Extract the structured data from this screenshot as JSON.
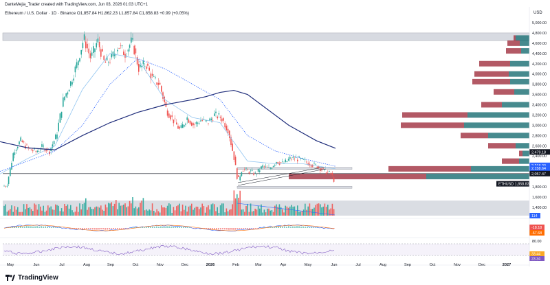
{
  "header": {
    "credit": "DanteMejia_Trader created with TradingView.com, Jun 03, 2026 01:03 UTC+1",
    "symbol_line": "Ethereum / U.S. Dollar · 1D · Binance  O1,857.84  H1,862.23  L1,857.84  C1,858.83  +0.99 (+0.05%)"
  },
  "brand": {
    "name": "TradingView",
    "logo_icon": "tradingview-logo-icon"
  },
  "price_axis": {
    "currency": "USD",
    "ticks": [
      "5,000.00",
      "4,800.00",
      "4,600.00",
      "4,400.00",
      "4,200.00",
      "4,000.00",
      "3,800.00",
      "3,600.00",
      "3,400.00",
      "3,200.00",
      "3,000.00",
      "2,800.00",
      "2,600.00",
      "2,400.00",
      "2,200.00",
      "1,800.00",
      "1,600.00",
      "1,400.00"
    ],
    "tick_values": [
      5000,
      4800,
      4600,
      4400,
      4200,
      4000,
      3800,
      3600,
      3400,
      3200,
      3000,
      2800,
      2600,
      2400,
      2200,
      1800,
      1600,
      1400
    ],
    "badges": [
      {
        "text": "2,479.18",
        "value": 2479.18,
        "color": "#131722"
      },
      {
        "text": "2,218.00",
        "value": 2218,
        "color": "#2962ff"
      },
      {
        "text": "2,158.64",
        "value": 2158.64,
        "color": "#2962ff"
      },
      {
        "text": "2,057.47",
        "value": 2057.47,
        "color": "#131722"
      },
      {
        "text": "ETHUSD",
        "value": 1858.83,
        "color": "#131722",
        "wide": true,
        "label": "1,858.83"
      }
    ],
    "volume_badge": "114",
    "macd_badges": [
      "-18.18",
      "-67.68"
    ],
    "rsi_ticks": [
      "80.00"
    ],
    "rsi_badges": [
      "33.44",
      "23.34"
    ]
  },
  "time_axis": {
    "labels": [
      "May",
      "Jun",
      "Jul",
      "Aug",
      "Sep",
      "Oct",
      "Nov",
      "Dec",
      "2026",
      "Feb",
      "Mar",
      "Apr",
      "May",
      "Jun",
      "Jul",
      "Aug",
      "Sep",
      "Oct",
      "Nov",
      "Dec",
      "2027"
    ]
  },
  "chart_data": {
    "type": "candlestick",
    "symbol": "ETHUSD",
    "interval": "1D",
    "exchange": "Binance",
    "last_price": 1858.83,
    "ylim": [
      1400,
      5000
    ],
    "price_path": [
      [
        0,
        1800
      ],
      [
        10,
        1830
      ],
      [
        20,
        2500
      ],
      [
        30,
        2700
      ],
      [
        40,
        2550
      ],
      [
        52,
        2480
      ],
      [
        62,
        2580
      ],
      [
        72,
        2500
      ],
      [
        82,
        2800
      ],
      [
        92,
        3500
      ],
      [
        102,
        3800
      ],
      [
        112,
        4200
      ],
      [
        122,
        4700
      ],
      [
        132,
        4300
      ],
      [
        142,
        4650
      ],
      [
        152,
        4200
      ],
      [
        162,
        4300
      ],
      [
        172,
        4550
      ],
      [
        182,
        4400
      ],
      [
        192,
        4650
      ],
      [
        202,
        4100
      ],
      [
        212,
        4200
      ],
      [
        222,
        3900
      ],
      [
        232,
        3800
      ],
      [
        242,
        3300
      ],
      [
        252,
        3100
      ],
      [
        262,
        2900
      ],
      [
        272,
        3150
      ],
      [
        282,
        3000
      ],
      [
        292,
        3100
      ],
      [
        302,
        3050
      ],
      [
        312,
        3200
      ],
      [
        322,
        3150
      ],
      [
        332,
        2900
      ],
      [
        340,
        2400
      ],
      [
        346,
        1900
      ],
      [
        352,
        2150
      ],
      [
        362,
        2100
      ],
      [
        372,
        2050
      ],
      [
        382,
        2200
      ],
      [
        392,
        2150
      ],
      [
        402,
        2300
      ],
      [
        412,
        2250
      ],
      [
        422,
        2350
      ],
      [
        432,
        2350
      ],
      [
        442,
        2300
      ],
      [
        452,
        2250
      ],
      [
        462,
        2200
      ],
      [
        472,
        2100
      ],
      [
        482,
        2050
      ],
      [
        488,
        1858
      ]
    ],
    "ma_slow": [
      [
        0,
        2680
      ],
      [
        40,
        2560
      ],
      [
        80,
        2520
      ],
      [
        120,
        2800
      ],
      [
        160,
        3050
      ],
      [
        200,
        3250
      ],
      [
        240,
        3400
      ],
      [
        280,
        3500
      ],
      [
        300,
        3560
      ],
      [
        320,
        3640
      ],
      [
        340,
        3680
      ],
      [
        360,
        3600
      ],
      [
        380,
        3400
      ],
      [
        420,
        3000
      ],
      [
        460,
        2700
      ],
      [
        488,
        2550
      ]
    ],
    "ma_fast_dotted": [
      [
        0,
        2100
      ],
      [
        40,
        2300
      ],
      [
        80,
        2500
      ],
      [
        120,
        3000
      ],
      [
        160,
        3800
      ],
      [
        200,
        4300
      ],
      [
        240,
        4100
      ],
      [
        280,
        3800
      ],
      [
        320,
        3500
      ],
      [
        360,
        2800
      ],
      [
        400,
        2500
      ],
      [
        440,
        2350
      ],
      [
        488,
        2200
      ]
    ],
    "ma_light": [
      [
        0,
        2050
      ],
      [
        40,
        2350
      ],
      [
        80,
        2600
      ],
      [
        120,
        3700
      ],
      [
        160,
        4400
      ],
      [
        200,
        4300
      ],
      [
        240,
        3500
      ],
      [
        280,
        3150
      ],
      [
        320,
        3050
      ],
      [
        360,
        2300
      ],
      [
        400,
        2250
      ],
      [
        440,
        2250
      ],
      [
        488,
        2150
      ]
    ],
    "zones": [
      {
        "from": 4650,
        "to": 4800
      },
      {
        "from": 2160,
        "to": 2180
      },
      {
        "from": 1780,
        "to": 1810
      }
    ],
    "horizontal_lines": [
      2057.47
    ],
    "volume_profile": [
      {
        "price": 4700,
        "up": 20,
        "down": 3
      },
      {
        "price": 4600,
        "up": 14,
        "down": 18
      },
      {
        "price": 4450,
        "up": 12,
        "down": 22
      },
      {
        "price": 4200,
        "up": 28,
        "down": 45
      },
      {
        "price": 4000,
        "up": 30,
        "down": 50
      },
      {
        "price": 3850,
        "up": 28,
        "down": 55
      },
      {
        "price": 3650,
        "up": 22,
        "down": 30
      },
      {
        "price": 3400,
        "up": 40,
        "down": 30
      },
      {
        "price": 3200,
        "up": 90,
        "down": 95
      },
      {
        "price": 3000,
        "up": 95,
        "down": 92
      },
      {
        "price": 2800,
        "up": 60,
        "down": 40
      },
      {
        "price": 2600,
        "up": 20,
        "down": 40
      },
      {
        "price": 2450,
        "up": 10,
        "down": 5
      },
      {
        "price": 2300,
        "up": 15,
        "down": 25
      },
      {
        "price": 2150,
        "up": 85,
        "down": 120
      },
      {
        "price": 2000,
        "up": 150,
        "down": 200
      },
      {
        "price": 1860,
        "up": 10,
        "down": 20
      }
    ],
    "colors": {
      "up": "#26a69a",
      "down": "#ef5350",
      "vp_up": "#26767a",
      "vp_down": "#a63c4a",
      "ma_slow": "#1e2c7a",
      "ma_dotted": "#2962ff",
      "ma_light": "#90c4f0"
    }
  }
}
